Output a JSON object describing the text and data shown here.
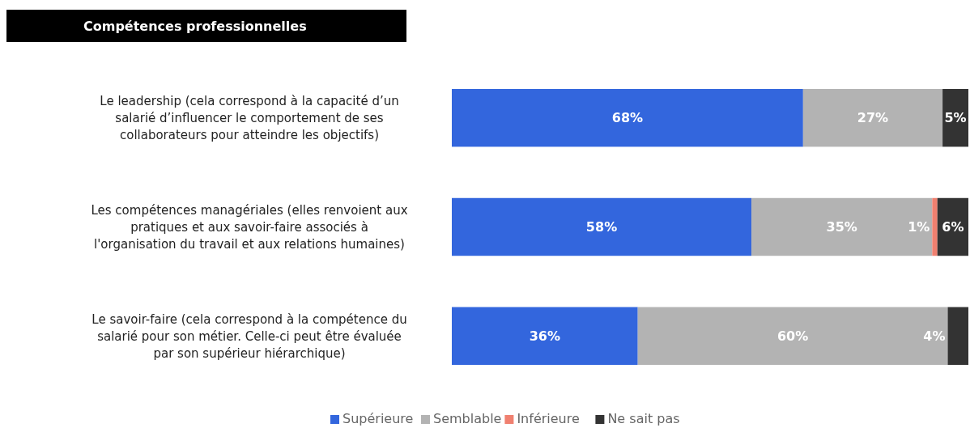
{
  "chart_data": {
    "type": "bar",
    "orientation": "horizontal",
    "stacked": true,
    "title": "Compétences professionnelles",
    "categories": [
      "Le leadership (cela correspond à la capacité d’un salarié d’influencer le comportement de ses collaborateurs pour atteindre les objectifs)",
      "Les compétences managériales (elles renvoient aux pratiques et aux savoir-faire associés à l'organisation du travail et aux relations humaines)",
      "Le savoir-faire (cela correspond à la compétence du salarié pour son métier. Celle-ci peut être évaluée par son supérieur hiérarchique)"
    ],
    "series": [
      {
        "name": "Supérieure",
        "color": "#3366dd",
        "values": [
          68,
          58,
          36
        ],
        "value_labels": [
          "68%",
          "58%",
          "36%"
        ]
      },
      {
        "name": "Semblable",
        "color": "#b3b3b3",
        "values": [
          27,
          35,
          60
        ],
        "value_labels": [
          "27%",
          "35%",
          "60%"
        ]
      },
      {
        "name": "Inférieure",
        "color": "#f08070",
        "values": [
          0,
          1,
          0
        ],
        "value_labels": [
          null,
          "1%",
          null
        ]
      },
      {
        "name": "Ne sait pas",
        "color": "#333333",
        "values": [
          5,
          6,
          4
        ],
        "value_labels": [
          "5%",
          "6%",
          "4%"
        ]
      }
    ],
    "xlim": [
      0,
      100
    ],
    "legend": "bottom"
  }
}
